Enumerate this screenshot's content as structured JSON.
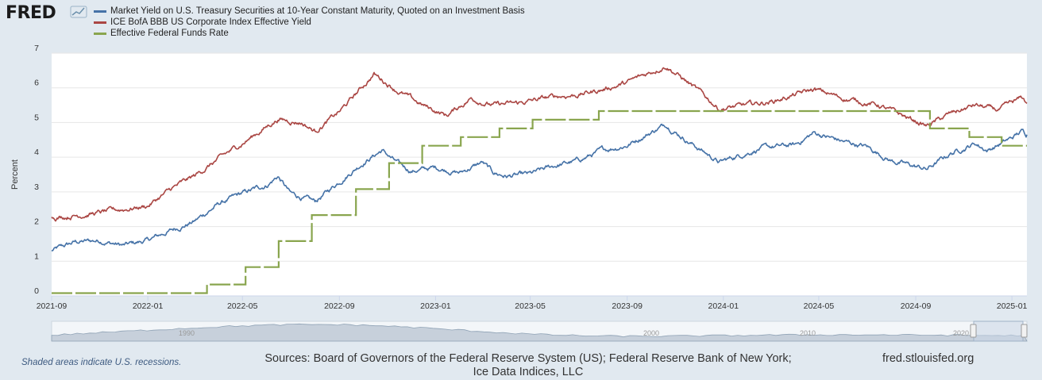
{
  "header": {
    "logo_text": "FRED"
  },
  "chart_data": {
    "type": "line",
    "ylabel": "Percent",
    "ylim": [
      0,
      7
    ],
    "yticks": [
      0,
      1,
      2,
      3,
      4,
      5,
      6,
      7
    ],
    "xlim": [
      "2021-09-01",
      "2025-01-20"
    ],
    "xticks": [
      "2021-09",
      "2022-01",
      "2022-05",
      "2022-09",
      "2023-01",
      "2023-05",
      "2023-09",
      "2024-01",
      "2024-05",
      "2024-09",
      "2025-01"
    ],
    "grid": true,
    "legend_placement": "top-left",
    "series": [
      {
        "name": "Market Yield on U.S. Treasury Securities at 10-Year Constant Maturity, Quoted on an Investment Basis",
        "color": "#4572a7",
        "style": "noisy",
        "points": [
          [
            "2021-09-01",
            1.3
          ],
          [
            "2021-10-01",
            1.55
          ],
          [
            "2021-11-01",
            1.6
          ],
          [
            "2021-12-01",
            1.45
          ],
          [
            "2022-01-01",
            1.6
          ],
          [
            "2022-02-01",
            1.9
          ],
          [
            "2022-03-01",
            2.15
          ],
          [
            "2022-04-01",
            2.65
          ],
          [
            "2022-05-01",
            2.95
          ],
          [
            "2022-06-01",
            3.2
          ],
          [
            "2022-06-15",
            3.45
          ],
          [
            "2022-07-01",
            2.95
          ],
          [
            "2022-08-01",
            2.7
          ],
          [
            "2022-09-01",
            3.3
          ],
          [
            "2022-10-01",
            3.85
          ],
          [
            "2022-10-25",
            4.2
          ],
          [
            "2022-11-15",
            3.8
          ],
          [
            "2022-12-01",
            3.6
          ],
          [
            "2023-01-01",
            3.7
          ],
          [
            "2023-02-01",
            3.55
          ],
          [
            "2023-03-01",
            3.85
          ],
          [
            "2023-03-15",
            3.55
          ],
          [
            "2023-04-01",
            3.45
          ],
          [
            "2023-05-01",
            3.5
          ],
          [
            "2023-06-01",
            3.75
          ],
          [
            "2023-07-01",
            3.9
          ],
          [
            "2023-08-01",
            4.2
          ],
          [
            "2023-09-01",
            4.35
          ],
          [
            "2023-10-20",
            4.95
          ],
          [
            "2023-11-15",
            4.5
          ],
          [
            "2023-12-27",
            3.85
          ],
          [
            "2024-01-15",
            4.0
          ],
          [
            "2024-02-15",
            4.25
          ],
          [
            "2024-04-01",
            4.35
          ],
          [
            "2024-04-25",
            4.7
          ],
          [
            "2024-06-01",
            4.45
          ],
          [
            "2024-07-01",
            4.3
          ],
          [
            "2024-08-01",
            3.9
          ],
          [
            "2024-09-15",
            3.65
          ],
          [
            "2024-10-15",
            4.1
          ],
          [
            "2024-11-15",
            4.4
          ],
          [
            "2024-12-01",
            4.2
          ],
          [
            "2025-01-01",
            4.55
          ],
          [
            "2025-01-14",
            4.75
          ],
          [
            "2025-01-20",
            4.65
          ]
        ]
      },
      {
        "name": "ICE BofA BBB US Corporate Index Effective Yield",
        "color": "#aa4643",
        "style": "noisy",
        "points": [
          [
            "2021-09-01",
            2.25
          ],
          [
            "2021-11-01",
            2.4
          ],
          [
            "2022-01-01",
            2.6
          ],
          [
            "2022-02-01",
            3.1
          ],
          [
            "2022-03-01",
            3.45
          ],
          [
            "2022-04-01",
            3.95
          ],
          [
            "2022-05-01",
            4.4
          ],
          [
            "2022-06-15",
            5.1
          ],
          [
            "2022-07-15",
            5.0
          ],
          [
            "2022-08-01",
            4.75
          ],
          [
            "2022-09-01",
            5.3
          ],
          [
            "2022-10-15",
            6.4
          ],
          [
            "2022-11-15",
            5.9
          ],
          [
            "2022-12-15",
            5.5
          ],
          [
            "2023-01-15",
            5.2
          ],
          [
            "2023-02-15",
            5.7
          ],
          [
            "2023-03-15",
            5.5
          ],
          [
            "2023-04-15",
            5.55
          ],
          [
            "2023-06-01",
            5.75
          ],
          [
            "2023-07-01",
            5.8
          ],
          [
            "2023-08-01",
            5.95
          ],
          [
            "2023-09-01",
            6.15
          ],
          [
            "2023-10-20",
            6.65
          ],
          [
            "2023-11-20",
            6.1
          ],
          [
            "2023-12-27",
            5.4
          ],
          [
            "2024-01-15",
            5.45
          ],
          [
            "2024-03-01",
            5.6
          ],
          [
            "2024-04-25",
            5.95
          ],
          [
            "2024-06-01",
            5.7
          ],
          [
            "2024-07-15",
            5.5
          ],
          [
            "2024-08-15",
            5.2
          ],
          [
            "2024-09-15",
            4.9
          ],
          [
            "2024-10-15",
            5.25
          ],
          [
            "2024-11-15",
            5.5
          ],
          [
            "2024-12-15",
            5.35
          ],
          [
            "2025-01-14",
            5.7
          ],
          [
            "2025-01-20",
            5.55
          ]
        ]
      },
      {
        "name": "Effective Federal Funds Rate",
        "color": "#89a54e",
        "style": "step",
        "points": [
          [
            "2021-09-01",
            0.08
          ],
          [
            "2022-03-17",
            0.33
          ],
          [
            "2022-05-05",
            0.83
          ],
          [
            "2022-06-16",
            1.58
          ],
          [
            "2022-07-28",
            2.33
          ],
          [
            "2022-09-22",
            3.08
          ],
          [
            "2022-11-03",
            3.83
          ],
          [
            "2022-12-15",
            4.33
          ],
          [
            "2023-02-02",
            4.58
          ],
          [
            "2023-03-23",
            4.83
          ],
          [
            "2023-05-04",
            5.08
          ],
          [
            "2023-07-27",
            5.33
          ],
          [
            "2024-09-19",
            4.83
          ],
          [
            "2024-11-08",
            4.58
          ],
          [
            "2024-12-19",
            4.33
          ],
          [
            "2025-01-20",
            4.33
          ]
        ]
      }
    ]
  },
  "navigator": {
    "labels": [
      "1990",
      "2000",
      "2010",
      "2020"
    ]
  },
  "footer": {
    "recession_note": "Shaded areas indicate U.S. recessions.",
    "sources": "Sources: Board of Governors of the Federal Reserve System (US); Federal Reserve Bank of New York; Ice Data Indices, LLC",
    "url": "fred.stlouisfed.org"
  }
}
